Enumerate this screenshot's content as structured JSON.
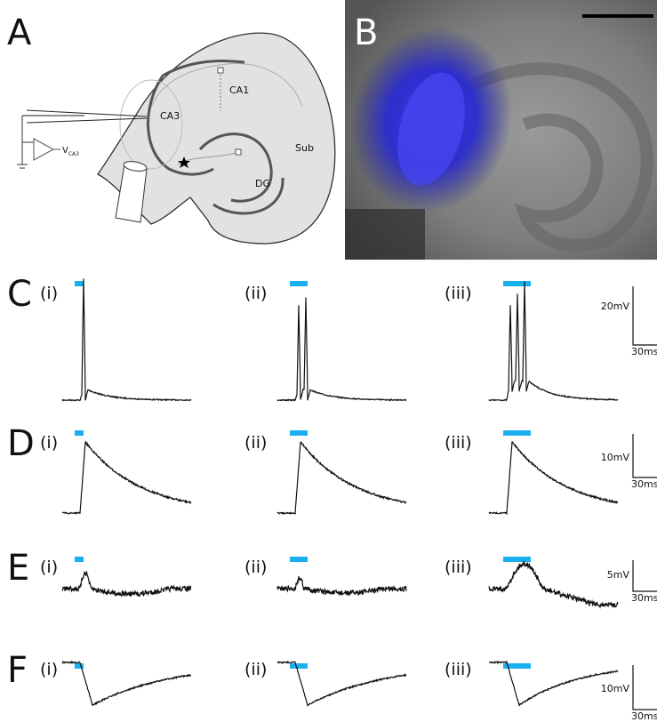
{
  "panel_A": {
    "label": "A",
    "regions": {
      "ca1": "CA1",
      "ca3": "CA3",
      "sub": "Sub",
      "dg": "DG"
    },
    "amplifier": {
      "symbol": "V",
      "subscript": "CA3"
    }
  },
  "panel_B": {
    "label": "B"
  },
  "rows": [
    {
      "label": "C",
      "conditions": [
        "(i)",
        "(ii)",
        "(iii)"
      ],
      "scale_bar": {
        "amplitude": "20mV",
        "duration": "30ms"
      }
    },
    {
      "label": "D",
      "conditions": [
        "(i)",
        "(ii)",
        "(iii)"
      ],
      "scale_bar": {
        "amplitude": "10mV",
        "duration": "30ms"
      }
    },
    {
      "label": "E",
      "conditions": [
        "(i)",
        "(ii)",
        "(iii)"
      ],
      "scale_bar": {
        "amplitude": "5mV",
        "duration": "30ms"
      }
    },
    {
      "label": "F",
      "conditions": [
        "(i)",
        "(ii)",
        "(iii)"
      ],
      "scale_bar": {
        "amplitude": "10mV",
        "duration": "30ms"
      }
    }
  ]
}
